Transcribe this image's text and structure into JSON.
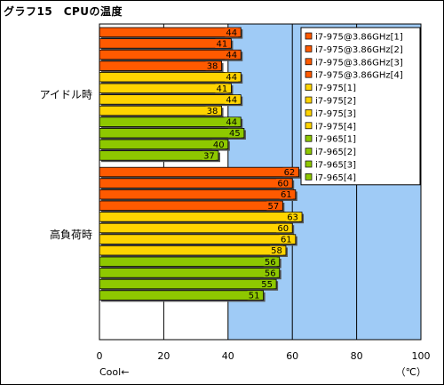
{
  "title": "グラフ15　CPUの温度",
  "colors": {
    "plot_bg": "#ffffff",
    "plot_bg_right": "#9fcbf6",
    "orange": "#ff5a00",
    "yellow": "#ffd400",
    "green": "#8ec800",
    "grid": "#000000"
  },
  "chart_data": {
    "type": "bar",
    "orientation": "horizontal",
    "groups": [
      "アイドル時",
      "高負荷時"
    ],
    "series": [
      {
        "name": "i7-975@3.86GHz[1]",
        "color": "#ff5a00",
        "values": [
          44,
          62
        ]
      },
      {
        "name": "i7-975@3.86GHz[2]",
        "color": "#ff5a00",
        "values": [
          41,
          60
        ]
      },
      {
        "name": "i7-975@3.86GHz[3]",
        "color": "#ff5a00",
        "values": [
          44,
          61
        ]
      },
      {
        "name": "i7-975@3.86GHz[4]",
        "color": "#ff5a00",
        "values": [
          38,
          57
        ]
      },
      {
        "name": "i7-975[1]",
        "color": "#ffd400",
        "values": [
          44,
          63
        ]
      },
      {
        "name": "i7-975[2]",
        "color": "#ffd400",
        "values": [
          41,
          60
        ]
      },
      {
        "name": "i7-975[3]",
        "color": "#ffd400",
        "values": [
          44,
          61
        ]
      },
      {
        "name": "i7-975[4]",
        "color": "#ffd400",
        "values": [
          38,
          58
        ]
      },
      {
        "name": "i7-965[1]",
        "color": "#8ec800",
        "values": [
          44,
          56
        ]
      },
      {
        "name": "i7-965[2]",
        "color": "#8ec800",
        "values": [
          45,
          56
        ]
      },
      {
        "name": "i7-965[3]",
        "color": "#8ec800",
        "values": [
          40,
          55
        ]
      },
      {
        "name": "i7-965[4]",
        "color": "#8ec800",
        "values": [
          37,
          51
        ]
      }
    ],
    "xlim": [
      0,
      100
    ],
    "xticks": [
      0,
      20,
      40,
      60,
      80,
      100
    ],
    "xlabel_left": "Cool←",
    "xlabel_right": "（℃）",
    "grid": true,
    "legend": "top-right"
  }
}
